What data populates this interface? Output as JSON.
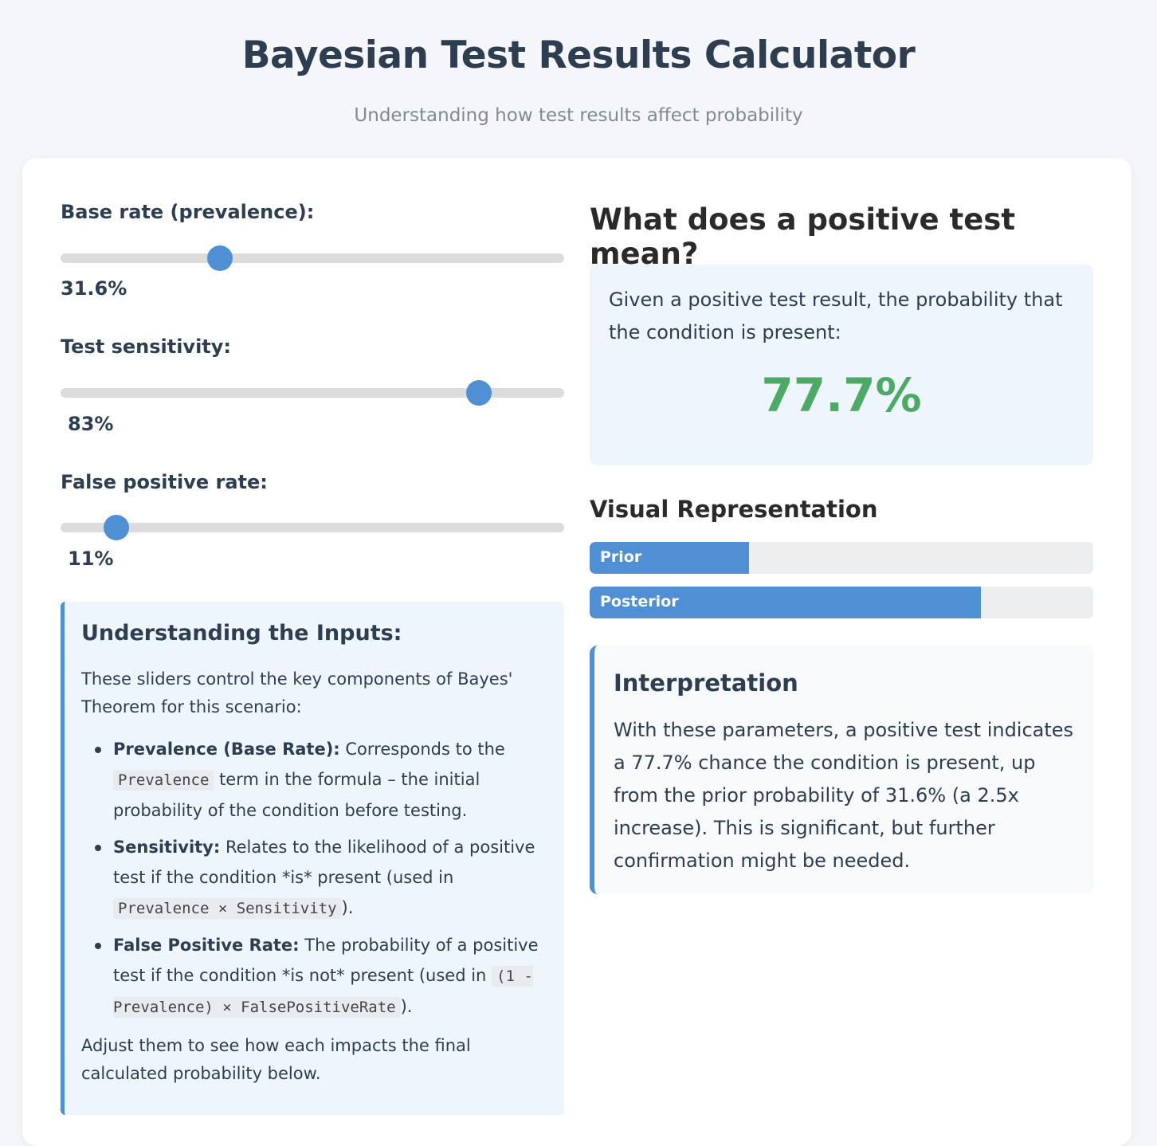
{
  "header": {
    "title": "Bayesian Test Results Calculator",
    "subtitle": "Understanding how test results affect probability"
  },
  "sliders": [
    {
      "label": "Base rate (prevalence):",
      "value_text": "31.6%",
      "value": 0.316
    },
    {
      "label": "Test sensitivity:",
      "value_text": "83%",
      "value": 0.83
    },
    {
      "label": "False positive rate:",
      "value_text": "11%",
      "value": 0.11
    }
  ],
  "info": {
    "title": "Understanding the Inputs:",
    "intro": "These sliders control the key components of Bayes' Theorem for this scenario:",
    "items": [
      {
        "bold": "Prevalence (Base Rate):",
        "text1": " Corresponds to the ",
        "code": "Prevalence",
        "text2": " term in the formula – the initial probability of the condition before testing."
      },
      {
        "bold": "Sensitivity:",
        "text1": " Relates to the likelihood of a positive test if the condition *is* present (used in ",
        "code": "Prevalence × Sensitivity",
        "text2": ")."
      },
      {
        "bold": "False Positive Rate:",
        "text1": " The probability of a positive test if the condition *is not* present (used in ",
        "code": "(1 - Prevalence) × FalsePositiveRate",
        "text2": ")."
      }
    ],
    "outro": "Adjust them to see how each impacts the final calculated probability below."
  },
  "result": {
    "heading": "What does a positive test mean?",
    "description": "Given a positive test result, the probability that the condition is present:",
    "value": "77.7%"
  },
  "visual": {
    "heading": "Visual Representation",
    "bars": [
      {
        "label": "Prior",
        "value": 0.316
      },
      {
        "label": "Posterior",
        "value": 0.777
      }
    ]
  },
  "interpretation": {
    "title": "Interpretation",
    "text": "With these parameters, a positive test indicates a 77.7% chance the condition is present, up from the prior probability of 31.6% (a 2.5x increase). This is significant, but further confirmation might be needed."
  },
  "colors": {
    "accent": "#4f90d4",
    "result": "#4caa64",
    "panel": "#eef5fd"
  }
}
